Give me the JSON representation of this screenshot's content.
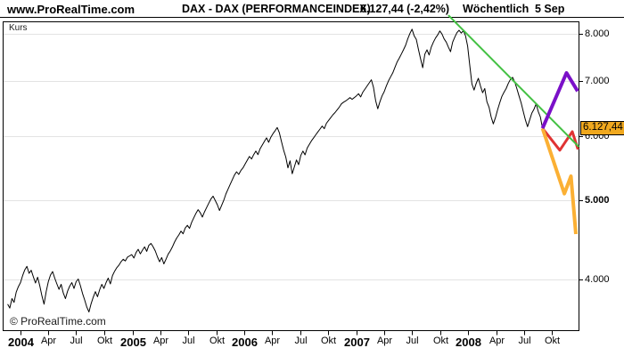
{
  "header": {
    "logo": "www.ProRealTime.com",
    "title": "DAX - DAX (PERFORMANCEINDEX)",
    "quote": "6.127,44 (-2,42%)",
    "timeframe": "Wöchentlich",
    "date": "5 Sep"
  },
  "plot": {
    "kurs_label": "Kurs",
    "watermark": "© ProRealTime.com",
    "last_price_label": "6.127,44",
    "price_box_color": "#f0a81e"
  },
  "chart_data": {
    "type": "line",
    "title": "DAX - DAX (PERFORMANCEINDEX)",
    "timeframe": "Wöchentlich",
    "last_date": "5 Sep",
    "last_price": 6127.44,
    "change_percent": "-2,42%",
    "scale": "logarithmic",
    "grid": "horizontal-only",
    "x_unit": "weeks since 2004-01-01",
    "y_axis": {
      "side": "right",
      "ticks": [
        {
          "label": "8.000",
          "value": 8000,
          "bold": false
        },
        {
          "label": "7.000",
          "value": 7000,
          "bold": false
        },
        {
          "label": "6.000",
          "value": 6000,
          "bold": false
        },
        {
          "label": "5.000",
          "value": 5000,
          "bold": true
        },
        {
          "label": "4.000",
          "value": 4000,
          "bold": false
        }
      ]
    },
    "x_axis": {
      "ticks": [
        {
          "label": "2004",
          "week": 0,
          "bold": true
        },
        {
          "label": "Apr",
          "week": 13.0,
          "bold": false
        },
        {
          "label": "Jul",
          "week": 26.0,
          "bold": false
        },
        {
          "label": "Okt",
          "week": 39.2,
          "bold": false
        },
        {
          "label": "2005",
          "week": 52.4,
          "bold": true
        },
        {
          "label": "Apr",
          "week": 65.4,
          "bold": false
        },
        {
          "label": "Jul",
          "week": 78.4,
          "bold": false
        },
        {
          "label": "Okt",
          "week": 91.6,
          "bold": false
        },
        {
          "label": "2006",
          "week": 104.7,
          "bold": true
        },
        {
          "label": "Apr",
          "week": 117.7,
          "bold": false
        },
        {
          "label": "Jul",
          "week": 130.7,
          "bold": false
        },
        {
          "label": "Okt",
          "week": 143.9,
          "bold": false
        },
        {
          "label": "2007",
          "week": 157.0,
          "bold": true
        },
        {
          "label": "Apr",
          "week": 170.0,
          "bold": false
        },
        {
          "label": "Jul",
          "week": 183.0,
          "bold": false
        },
        {
          "label": "Okt",
          "week": 196.1,
          "bold": false
        },
        {
          "label": "2008",
          "week": 209.3,
          "bold": true
        },
        {
          "label": "Apr",
          "week": 222.3,
          "bold": false
        },
        {
          "label": "Jul",
          "week": 235.3,
          "bold": false
        },
        {
          "label": "Okt",
          "week": 248.4,
          "bold": false
        }
      ]
    },
    "series": [
      {
        "name": "price-line",
        "color": "#000000",
        "width": 1,
        "points": [
          [
            -6,
            3730
          ],
          [
            -5,
            3690
          ],
          [
            -4,
            3790
          ],
          [
            -3,
            3750
          ],
          [
            -2,
            3860
          ],
          [
            -1,
            3920
          ],
          [
            0,
            3965
          ],
          [
            1,
            4045
          ],
          [
            2,
            4110
          ],
          [
            3,
            4150
          ],
          [
            4,
            4070
          ],
          [
            5,
            4105
          ],
          [
            6,
            4030
          ],
          [
            7,
            3960
          ],
          [
            8,
            4025
          ],
          [
            9,
            3930
          ],
          [
            10,
            3820
          ],
          [
            11,
            3730
          ],
          [
            12,
            3865
          ],
          [
            13,
            3975
          ],
          [
            14,
            4050
          ],
          [
            15,
            4090
          ],
          [
            16,
            4015
          ],
          [
            17,
            3950
          ],
          [
            18,
            3890
          ],
          [
            19,
            3945
          ],
          [
            20,
            3850
          ],
          [
            21,
            3790
          ],
          [
            22,
            3870
          ],
          [
            23,
            3925
          ],
          [
            24,
            3965
          ],
          [
            25,
            3900
          ],
          [
            26,
            3975
          ],
          [
            27,
            4005
          ],
          [
            28,
            3930
          ],
          [
            29,
            3845
          ],
          [
            30,
            3775
          ],
          [
            31,
            3700
          ],
          [
            32,
            3650
          ],
          [
            33,
            3735
          ],
          [
            34,
            3805
          ],
          [
            35,
            3865
          ],
          [
            36,
            3810
          ],
          [
            37,
            3885
          ],
          [
            38,
            3945
          ],
          [
            39,
            3900
          ],
          [
            40,
            3965
          ],
          [
            41,
            4015
          ],
          [
            42,
            3950
          ],
          [
            43,
            4045
          ],
          [
            44,
            4095
          ],
          [
            45,
            4135
          ],
          [
            46,
            4165
          ],
          [
            47,
            4205
          ],
          [
            48,
            4235
          ],
          [
            49,
            4215
          ],
          [
            50,
            4260
          ],
          [
            51,
            4275
          ],
          [
            52,
            4290
          ],
          [
            53,
            4250
          ],
          [
            54,
            4315
          ],
          [
            55,
            4355
          ],
          [
            56,
            4300
          ],
          [
            57,
            4345
          ],
          [
            58,
            4385
          ],
          [
            59,
            4330
          ],
          [
            60,
            4405
          ],
          [
            61,
            4428
          ],
          [
            62,
            4385
          ],
          [
            63,
            4335
          ],
          [
            64,
            4265
          ],
          [
            65,
            4205
          ],
          [
            66,
            4255
          ],
          [
            67,
            4180
          ],
          [
            68,
            4235
          ],
          [
            69,
            4295
          ],
          [
            70,
            4335
          ],
          [
            71,
            4385
          ],
          [
            72,
            4445
          ],
          [
            73,
            4495
          ],
          [
            74,
            4535
          ],
          [
            75,
            4585
          ],
          [
            76,
            4550
          ],
          [
            77,
            4625
          ],
          [
            78,
            4660
          ],
          [
            79,
            4620
          ],
          [
            80,
            4700
          ],
          [
            81,
            4760
          ],
          [
            82,
            4820
          ],
          [
            83,
            4870
          ],
          [
            84,
            4830
          ],
          [
            85,
            4770
          ],
          [
            86,
            4840
          ],
          [
            87,
            4900
          ],
          [
            88,
            4960
          ],
          [
            89,
            5020
          ],
          [
            90,
            5060
          ],
          [
            91,
            5000
          ],
          [
            92,
            4940
          ],
          [
            93,
            4860
          ],
          [
            94,
            4930
          ],
          [
            95,
            5000
          ],
          [
            96,
            5090
          ],
          [
            97,
            5160
          ],
          [
            98,
            5230
          ],
          [
            99,
            5300
          ],
          [
            100,
            5370
          ],
          [
            101,
            5420
          ],
          [
            102,
            5380
          ],
          [
            103,
            5440
          ],
          [
            104,
            5480
          ],
          [
            105,
            5540
          ],
          [
            106,
            5600
          ],
          [
            107,
            5660
          ],
          [
            108,
            5620
          ],
          [
            109,
            5690
          ],
          [
            110,
            5745
          ],
          [
            111,
            5690
          ],
          [
            112,
            5785
          ],
          [
            113,
            5845
          ],
          [
            114,
            5905
          ],
          [
            115,
            5965
          ],
          [
            116,
            5890
          ],
          [
            117,
            5975
          ],
          [
            118,
            6035
          ],
          [
            119,
            6085
          ],
          [
            120,
            6140
          ],
          [
            121,
            6050
          ],
          [
            122,
            5900
          ],
          [
            123,
            5760
          ],
          [
            124,
            5650
          ],
          [
            125,
            5480
          ],
          [
            126,
            5590
          ],
          [
            127,
            5390
          ],
          [
            128,
            5495
          ],
          [
            129,
            5605
          ],
          [
            130,
            5530
          ],
          [
            131,
            5675
          ],
          [
            132,
            5745
          ],
          [
            133,
            5685
          ],
          [
            134,
            5795
          ],
          [
            135,
            5855
          ],
          [
            136,
            5915
          ],
          [
            137,
            5965
          ],
          [
            138,
            6015
          ],
          [
            139,
            6065
          ],
          [
            140,
            6115
          ],
          [
            141,
            6165
          ],
          [
            142,
            6120
          ],
          [
            143,
            6215
          ],
          [
            144,
            6265
          ],
          [
            145,
            6315
          ],
          [
            146,
            6365
          ],
          [
            147,
            6405
          ],
          [
            148,
            6455
          ],
          [
            149,
            6505
          ],
          [
            150,
            6565
          ],
          [
            151,
            6596
          ],
          [
            152,
            6620
          ],
          [
            153,
            6650
          ],
          [
            154,
            6681
          ],
          [
            155,
            6650
          ],
          [
            156,
            6681
          ],
          [
            157,
            6715
          ],
          [
            158,
            6755
          ],
          [
            159,
            6695
          ],
          [
            160,
            6785
          ],
          [
            161,
            6845
          ],
          [
            162,
            6905
          ],
          [
            163,
            6965
          ],
          [
            164,
            7027
          ],
          [
            165,
            6875
          ],
          [
            166,
            6625
          ],
          [
            167,
            6475
          ],
          [
            168,
            6605
          ],
          [
            169,
            6715
          ],
          [
            170,
            6795
          ],
          [
            171,
            6905
          ],
          [
            172,
            7005
          ],
          [
            173,
            7085
          ],
          [
            174,
            7165
          ],
          [
            175,
            7275
          ],
          [
            176,
            7385
          ],
          [
            177,
            7465
          ],
          [
            178,
            7555
          ],
          [
            179,
            7645
          ],
          [
            180,
            7745
          ],
          [
            181,
            7885
          ],
          [
            182,
            8005
          ],
          [
            183,
            8105
          ],
          [
            184,
            7955
          ],
          [
            185,
            7875
          ],
          [
            186,
            7655
          ],
          [
            187,
            7455
          ],
          [
            188,
            7270
          ],
          [
            189,
            7555
          ],
          [
            190,
            7645
          ],
          [
            191,
            7535
          ],
          [
            192,
            7705
          ],
          [
            193,
            7815
          ],
          [
            194,
            7905
          ],
          [
            195,
            7975
          ],
          [
            196,
            8063
          ],
          [
            197,
            7995
          ],
          [
            198,
            7885
          ],
          [
            199,
            7815
          ],
          [
            200,
            7705
          ],
          [
            201,
            7605
          ],
          [
            202,
            7815
          ],
          [
            203,
            7925
          ],
          [
            204,
            8025
          ],
          [
            205,
            8080
          ],
          [
            206,
            8015
          ],
          [
            207,
            8067
          ],
          [
            208,
            7955
          ],
          [
            209,
            7725
          ],
          [
            210,
            7315
          ],
          [
            211,
            6945
          ],
          [
            212,
            6825
          ],
          [
            213,
            6955
          ],
          [
            214,
            7055
          ],
          [
            215,
            6905
          ],
          [
            216,
            6775
          ],
          [
            217,
            6855
          ],
          [
            218,
            6605
          ],
          [
            219,
            6505
          ],
          [
            220,
            6325
          ],
          [
            221,
            6205
          ],
          [
            222,
            6315
          ],
          [
            223,
            6455
          ],
          [
            224,
            6585
          ],
          [
            225,
            6705
          ],
          [
            226,
            6785
          ],
          [
            227,
            6855
          ],
          [
            228,
            6955
          ],
          [
            229,
            7035
          ],
          [
            230,
            7075
          ],
          [
            231,
            6985
          ],
          [
            232,
            6855
          ],
          [
            233,
            6715
          ],
          [
            234,
            6585
          ],
          [
            235,
            6425
          ],
          [
            236,
            6275
          ],
          [
            237,
            6155
          ],
          [
            238,
            6275
          ],
          [
            239,
            6395
          ],
          [
            240,
            6465
          ],
          [
            241,
            6565
          ],
          [
            242,
            6425
          ],
          [
            243,
            6325
          ],
          [
            244,
            6127.44
          ]
        ]
      },
      {
        "name": "scenario-middle-line",
        "color": "#e03333",
        "width": 3,
        "points": [
          [
            244,
            6127.44
          ],
          [
            252.1,
            5760
          ],
          [
            257.9,
            6070
          ],
          [
            260.6,
            5775
          ]
        ]
      },
      {
        "name": "trendline-line",
        "color": "#44c144",
        "width": 2,
        "points": [
          [
            200,
            8430
          ],
          [
            261,
            5815
          ]
        ]
      },
      {
        "name": "scenario-down-line",
        "color": "#fbb034",
        "width": 4,
        "points": [
          [
            244,
            6127.44
          ],
          [
            254.2,
            5095
          ],
          [
            257.3,
            5353
          ],
          [
            259.6,
            4547
          ]
        ]
      },
      {
        "name": "scenario-up-line",
        "color": "#7a10c8",
        "width": 4,
        "points": [
          [
            244,
            6127.44
          ],
          [
            255.2,
            7165
          ],
          [
            260.4,
            6805
          ]
        ]
      }
    ]
  }
}
